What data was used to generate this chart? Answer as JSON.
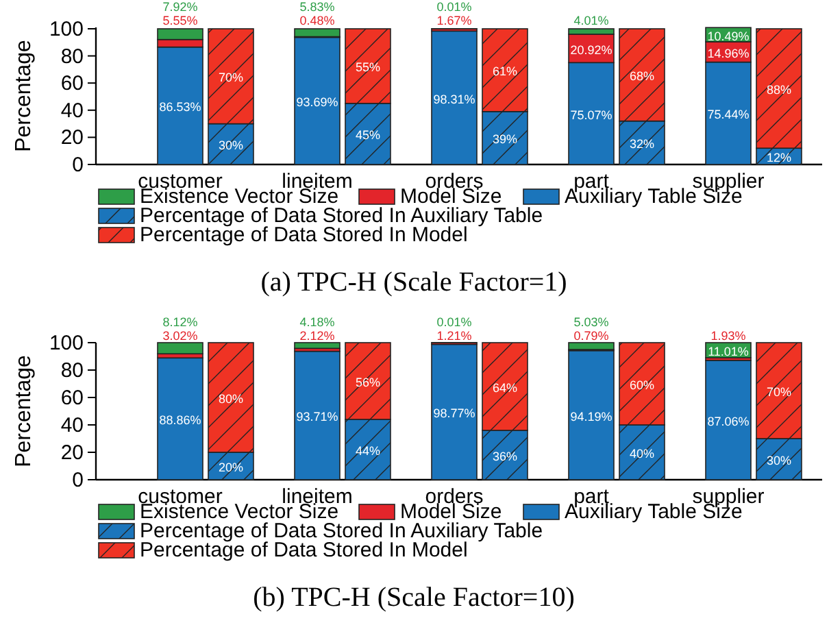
{
  "chart_data": [
    {
      "type": "bar",
      "stacked": true,
      "title": "(a) TPC-H (Scale Factor=1)",
      "ylabel": "Percentage",
      "categories": [
        "customer",
        null,
        "lineitem",
        null,
        "orders",
        null,
        "part",
        null,
        "supplier",
        null
      ],
      "ylim": [
        0,
        101
      ],
      "yticks": [
        0,
        20,
        40,
        60,
        80,
        100
      ],
      "legend": "bottom",
      "series": [
        {
          "name": "Auxiliary Table Size",
          "color": "#1b75bb",
          "values": [
            86.53,
            null,
            93.69,
            null,
            98.31,
            null,
            75.07,
            null,
            75.44,
            null
          ],
          "value_labels": [
            "86.53%",
            null,
            "93.69%",
            null,
            "98.31%",
            null,
            "75.07%",
            null,
            "75.44%",
            null
          ]
        },
        {
          "name": "Model Size",
          "color": "#e3252b",
          "values": [
            5.55,
            null,
            0.48,
            null,
            1.67,
            null,
            20.92,
            null,
            14.96,
            null
          ],
          "value_labels": [
            "5.55%",
            null,
            "0.48%",
            null,
            "1.67%",
            null,
            "20.92%",
            null,
            "14.96%",
            null
          ]
        },
        {
          "name": "Existence Vector Size",
          "color": "#2e9e48",
          "values": [
            7.92,
            null,
            5.83,
            null,
            0.01,
            null,
            4.01,
            null,
            10.49,
            null
          ],
          "value_labels": [
            "7.92%",
            null,
            "5.83%",
            null,
            "0.01%",
            null,
            "4.01%",
            null,
            "10.49%",
            null
          ]
        },
        {
          "name": "Percentage of Data Stored In Auxiliary Table",
          "color": "#1b75bb",
          "values": [
            null,
            30,
            null,
            45,
            null,
            39,
            null,
            32,
            null,
            12
          ],
          "value_labels": [
            null,
            "30%",
            null,
            "45%",
            null,
            "39%",
            null,
            "32%",
            null,
            "12%"
          ]
        },
        {
          "name": "Percentage of Data Stored In Model",
          "color": "#ef3324",
          "values": [
            null,
            70,
            null,
            55,
            null,
            61,
            null,
            68,
            null,
            88
          ],
          "value_labels": [
            null,
            "70%",
            null,
            "55%",
            null,
            "61%",
            null,
            "68%",
            null,
            "88%"
          ]
        }
      ]
    },
    {
      "type": "bar",
      "stacked": true,
      "title": "(b) TPC-H (Scale Factor=10)",
      "ylabel": "Percentage",
      "categories": [
        "customer",
        null,
        "lineitem",
        null,
        "orders",
        null,
        "part",
        null,
        "supplier",
        null
      ],
      "ylim": [
        0,
        100
      ],
      "yticks": [
        0,
        20,
        40,
        60,
        80,
        100
      ],
      "legend": "bottom",
      "series": [
        {
          "name": "Auxiliary Table Size",
          "color": "#1b75bb",
          "values": [
            88.86,
            null,
            93.71,
            null,
            98.77,
            null,
            94.19,
            null,
            87.06,
            null
          ],
          "value_labels": [
            "88.86%",
            null,
            "93.71%",
            null,
            "98.77%",
            null,
            "94.19%",
            null,
            "87.06%",
            null
          ]
        },
        {
          "name": "Model Size",
          "color": "#e3252b",
          "values": [
            3.02,
            null,
            2.12,
            null,
            1.21,
            null,
            0.79,
            null,
            1.93,
            null
          ],
          "value_labels": [
            "3.02%",
            null,
            "2.12%",
            null,
            "1.21%",
            null,
            "0.79%",
            null,
            "1.93%",
            null
          ]
        },
        {
          "name": "Existence Vector Size",
          "color": "#2e9e48",
          "values": [
            8.12,
            null,
            4.18,
            null,
            0.01,
            null,
            5.03,
            null,
            11.01,
            null
          ],
          "value_labels": [
            "8.12%",
            null,
            "4.18%",
            null,
            "0.01%",
            null,
            "5.03%",
            null,
            "11.01%",
            null
          ]
        },
        {
          "name": "Percentage of Data Stored In Auxiliary Table",
          "color": "#1b75bb",
          "values": [
            null,
            20,
            null,
            44,
            null,
            36,
            null,
            40,
            null,
            30
          ],
          "value_labels": [
            null,
            "20%",
            null,
            "44%",
            null,
            "36%",
            null,
            "40%",
            null,
            "30%"
          ]
        },
        {
          "name": "Percentage of Data Stored In Model",
          "color": "#ef3324",
          "values": [
            null,
            80,
            null,
            56,
            null,
            64,
            null,
            60,
            null,
            70
          ],
          "value_labels": [
            null,
            "80%",
            null,
            "56%",
            null,
            "64%",
            null,
            "60%",
            null,
            "70%"
          ]
        }
      ]
    }
  ]
}
